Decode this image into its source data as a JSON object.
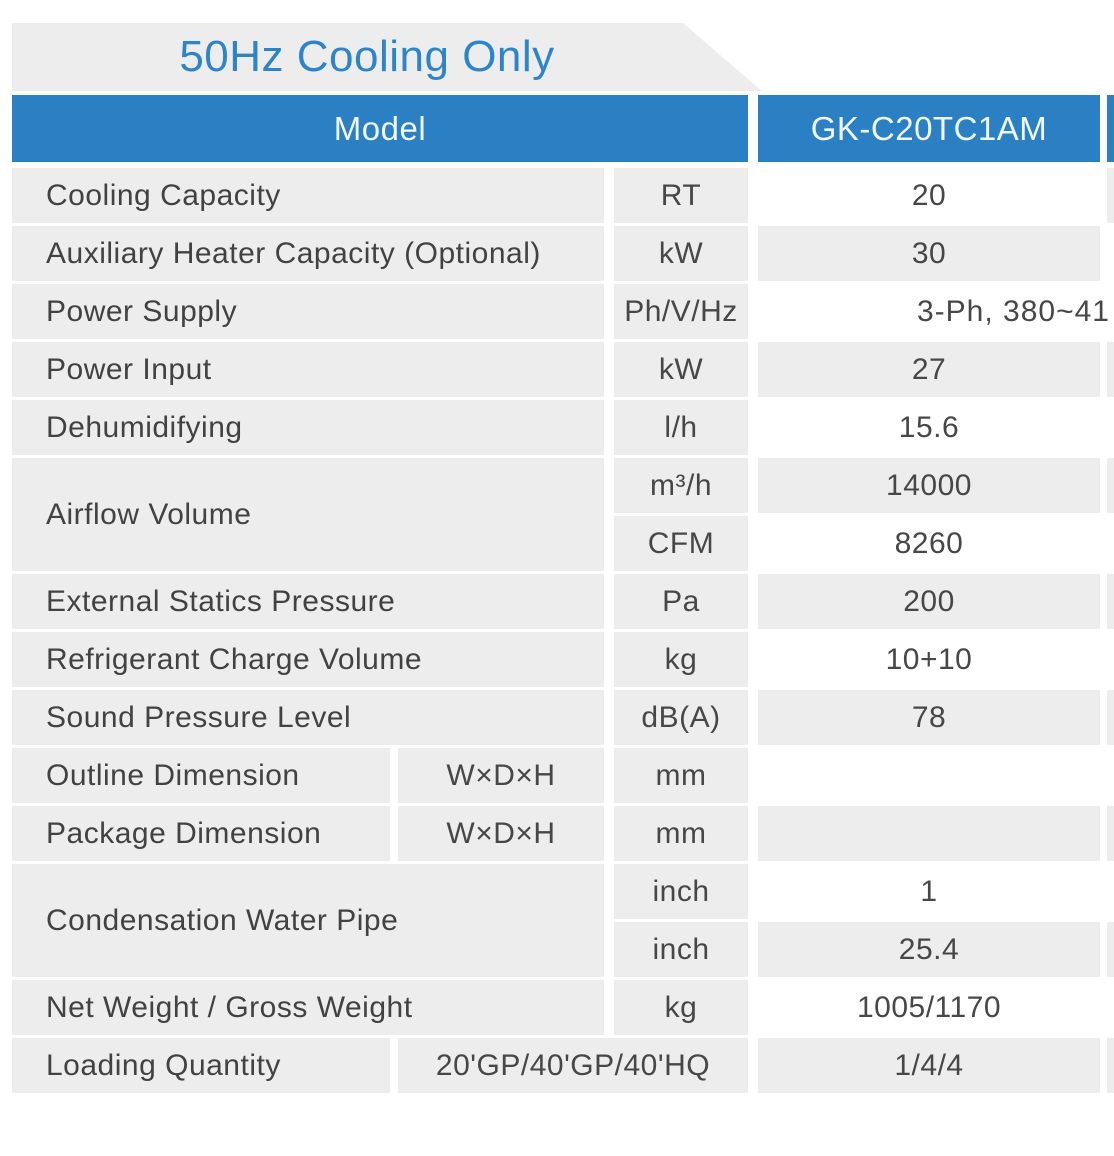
{
  "page": {
    "section_title": "50Hz Cooling Only"
  },
  "colors": {
    "header_blue": "#2b7fc3",
    "title_blue": "#2e84c9",
    "cell_gray": "#ededed"
  },
  "table": {
    "header": {
      "model_label": "Model",
      "model_value": "GK-C20TC1AM"
    },
    "rows": [
      {
        "label": "Cooling Capacity",
        "unit": "RT",
        "value": "20"
      },
      {
        "label": "Auxiliary Heater Capacity (Optional)",
        "unit": "kW",
        "value": "30"
      },
      {
        "label": "Power Supply",
        "unit": "Ph/V/Hz",
        "value": "3-Ph, 380~41"
      },
      {
        "label": "Power Input",
        "unit": "kW",
        "value": "27"
      },
      {
        "label": "Dehumidifying",
        "unit": "l/h",
        "value": "15.6"
      },
      {
        "label": "Airflow Volume",
        "unit": "m³/h",
        "value": "14000"
      },
      {
        "label": "",
        "unit": "CFM",
        "value": "8260"
      },
      {
        "label": "External Statics Pressure",
        "unit": "Pa",
        "value": "200"
      },
      {
        "label": "Refrigerant Charge Volume",
        "unit": "kg",
        "value": "10+10"
      },
      {
        "label": "Sound Pressure Level",
        "unit": "dB(A)",
        "value": "78"
      },
      {
        "label": "Outline Dimension",
        "sublabel": "W×D×H",
        "unit": "mm",
        "value": ""
      },
      {
        "label": "Package Dimension",
        "sublabel": "W×D×H",
        "unit": "mm",
        "value": ""
      },
      {
        "label": "Condensation Water Pipe",
        "unit": "inch",
        "value": "1"
      },
      {
        "label": "",
        "unit": "inch",
        "value": "25.4"
      },
      {
        "label": "Net Weight / Gross Weight",
        "unit": "kg",
        "value": "1005/1170"
      },
      {
        "label": "Loading Quantity",
        "merged_label": "20'GP/40'GP/40'HQ",
        "value": "1/4/4"
      }
    ]
  }
}
